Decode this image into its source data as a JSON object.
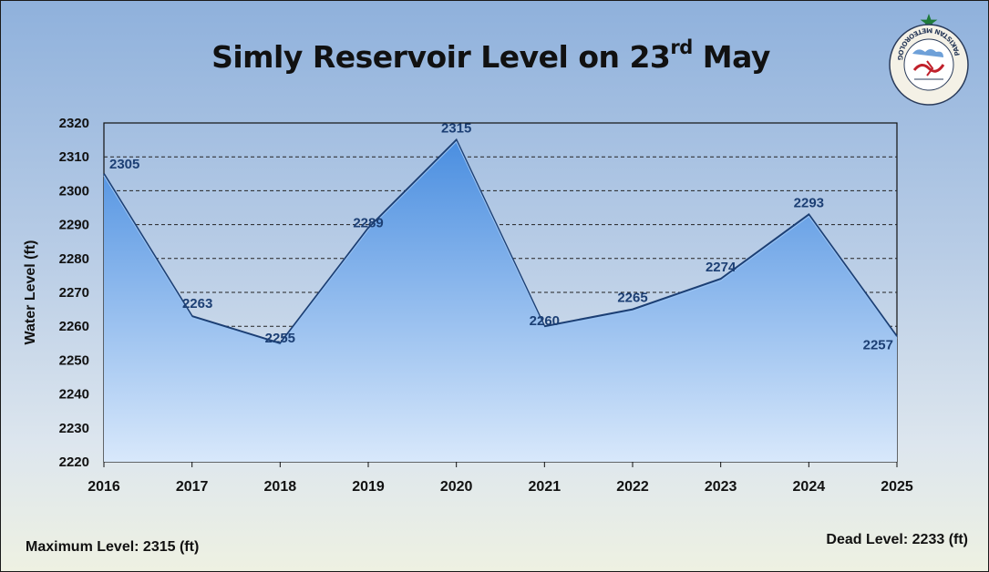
{
  "title_main": "Simly Reservoir Level on 23",
  "title_sup": "rd",
  "title_end": " May",
  "footer": {
    "max_level": "Maximum Level: 2315 (ft)",
    "dead_level": "Dead Level: 2233 (ft)"
  },
  "logo": {
    "text": "PAKISTAN METEOROLOGICAL DEPARTMENT",
    "star_color": "#1f7a3a",
    "accent_color": "#c0202a"
  },
  "colors": {
    "area_top": "#4a8ee0",
    "area_bottom": "#d8e8fb",
    "line": "#1c3f74",
    "label": "#1c3f74"
  },
  "chart_data": {
    "type": "area",
    "title": "Simly Reservoir Level on 23rd May",
    "xlabel": "",
    "ylabel": "Water Level (ft)",
    "x": [
      "2016",
      "2017",
      "2018",
      "2019",
      "2020",
      "2021",
      "2022",
      "2023",
      "2024",
      "2025"
    ],
    "series": [
      {
        "values": [
          2305,
          2263,
          2255,
          2289,
          2315,
          2260,
          2265,
          2274,
          2293,
          2257
        ]
      }
    ],
    "ylim": [
      2220,
      2320
    ],
    "yticks": [
      "2220",
      "2230",
      "2240",
      "2250",
      "2260",
      "2270",
      "2280",
      "2290",
      "2300",
      "2310",
      "2320"
    ],
    "data_labels": [
      "2305",
      "2263",
      "2255",
      "2289",
      "2315",
      "2260",
      "2265",
      "2274",
      "2293",
      "2257"
    ],
    "grid": "horizontal dashed",
    "legend": "none"
  }
}
